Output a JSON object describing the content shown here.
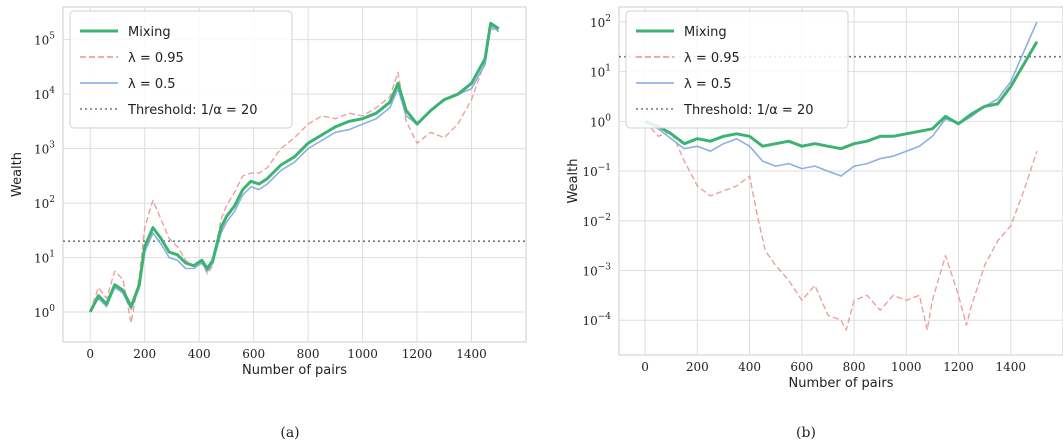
{
  "figure": {
    "captions": [
      "(a)",
      "(b)"
    ]
  },
  "chart_data": [
    {
      "type": "line",
      "caption": "(a)",
      "xlabel": "Number of pairs",
      "ylabel": "Wealth",
      "xlim": [
        -100,
        1600
      ],
      "ylim_log10": [
        -0.55,
        5.6
      ],
      "yscale": "log",
      "xticks": [
        0,
        200,
        400,
        600,
        800,
        1000,
        1200,
        1400
      ],
      "yticks_log10": [
        0,
        1,
        2,
        3,
        4,
        5
      ],
      "grid": true,
      "legend_position": "top-left",
      "legend": [
        "Mixing",
        "λ = 0.95",
        "λ = 0.5",
        "Threshold: 1/α = 20"
      ],
      "threshold": 20,
      "series": [
        {
          "name": "Mixing",
          "color": "#3cb371",
          "style": "solid-thick",
          "x": [
            0,
            30,
            60,
            90,
            120,
            150,
            180,
            200,
            230,
            260,
            290,
            320,
            350,
            380,
            410,
            430,
            450,
            480,
            500,
            530,
            560,
            590,
            620,
            650,
            700,
            750,
            800,
            850,
            900,
            950,
            1000,
            1050,
            1100,
            1130,
            1160,
            1200,
            1250,
            1300,
            1350,
            1400,
            1450,
            1470,
            1500
          ],
          "log10_y": [
            0,
            0.3,
            0.15,
            0.5,
            0.4,
            0.1,
            0.5,
            1.2,
            1.55,
            1.35,
            1.1,
            1.05,
            0.9,
            0.85,
            0.95,
            0.8,
            0.95,
            1.55,
            1.75,
            1.95,
            2.25,
            2.4,
            2.35,
            2.45,
            2.7,
            2.85,
            3.1,
            3.25,
            3.4,
            3.5,
            3.55,
            3.65,
            3.85,
            4.2,
            3.7,
            3.45,
            3.7,
            3.9,
            4.0,
            4.2,
            4.65,
            5.3,
            5.2
          ]
        },
        {
          "name": "λ = 0.95",
          "color": "#e8908e",
          "style": "dashed",
          "x": [
            0,
            30,
            60,
            90,
            120,
            150,
            180,
            200,
            230,
            260,
            290,
            320,
            350,
            380,
            410,
            430,
            450,
            480,
            500,
            530,
            560,
            590,
            620,
            650,
            700,
            750,
            800,
            850,
            900,
            950,
            1000,
            1050,
            1100,
            1130,
            1160,
            1200,
            1250,
            1300,
            1350,
            1400,
            1450,
            1470,
            1500
          ],
          "log10_y": [
            0,
            0.45,
            0.25,
            0.75,
            0.6,
            -0.2,
            0.65,
            1.55,
            2.05,
            1.7,
            1.35,
            1.2,
            0.95,
            0.85,
            0.9,
            0.7,
            0.85,
            1.7,
            1.95,
            2.2,
            2.5,
            2.55,
            2.55,
            2.65,
            3.0,
            3.2,
            3.45,
            3.6,
            3.55,
            3.65,
            3.6,
            3.75,
            3.95,
            4.4,
            3.5,
            3.1,
            3.3,
            3.2,
            3.45,
            3.9,
            4.6,
            5.2,
            5.15
          ]
        },
        {
          "name": "λ = 0.5",
          "color": "#7ea7e0",
          "style": "solid",
          "x": [
            0,
            30,
            60,
            90,
            120,
            150,
            180,
            200,
            230,
            260,
            290,
            320,
            350,
            380,
            410,
            430,
            450,
            480,
            500,
            530,
            560,
            590,
            620,
            650,
            700,
            750,
            800,
            850,
            900,
            950,
            1000,
            1050,
            1100,
            1130,
            1160,
            1200,
            1250,
            1300,
            1350,
            1400,
            1450,
            1470,
            1500
          ],
          "log10_y": [
            0,
            0.25,
            0.1,
            0.45,
            0.35,
            0.05,
            0.45,
            1.1,
            1.45,
            1.25,
            1.0,
            0.95,
            0.8,
            0.8,
            0.9,
            0.75,
            0.9,
            1.45,
            1.65,
            1.85,
            2.15,
            2.3,
            2.25,
            2.35,
            2.6,
            2.75,
            3.0,
            3.15,
            3.3,
            3.35,
            3.45,
            3.55,
            3.75,
            4.1,
            3.6,
            3.45,
            3.7,
            3.9,
            4.0,
            4.1,
            4.55,
            5.25,
            5.15
          ]
        }
      ]
    },
    {
      "type": "line",
      "caption": "(b)",
      "xlabel": "Number of pairs",
      "ylabel": "Wealth",
      "xlim": [
        -100,
        1600
      ],
      "ylim_log10": [
        -4.7,
        2.3
      ],
      "yscale": "log",
      "xticks": [
        0,
        200,
        400,
        600,
        800,
        1000,
        1200,
        1400
      ],
      "yticks_log10": [
        -4,
        -3,
        -2,
        -1,
        0,
        1,
        2
      ],
      "grid": true,
      "legend_position": "top-left",
      "legend": [
        "Mixing",
        "λ = 0.95",
        "λ = 0.5",
        "Threshold: 1/α = 20"
      ],
      "threshold": 20,
      "series": [
        {
          "name": "Mixing",
          "color": "#3cb371",
          "style": "solid-thick",
          "x": [
            0,
            50,
            100,
            150,
            200,
            250,
            300,
            350,
            400,
            450,
            500,
            550,
            600,
            650,
            700,
            750,
            800,
            850,
            900,
            950,
            1000,
            1050,
            1100,
            1150,
            1200,
            1250,
            1300,
            1350,
            1400,
            1450,
            1500
          ],
          "log10_y": [
            0,
            -0.1,
            -0.25,
            -0.45,
            -0.35,
            -0.4,
            -0.3,
            -0.25,
            -0.3,
            -0.5,
            -0.45,
            -0.4,
            -0.5,
            -0.45,
            -0.5,
            -0.55,
            -0.45,
            -0.4,
            -0.3,
            -0.3,
            -0.25,
            -0.2,
            -0.15,
            0.1,
            -0.05,
            0.15,
            0.3,
            0.35,
            0.7,
            1.15,
            1.6
          ]
        },
        {
          "name": "λ = 0.95",
          "color": "#e8908e",
          "style": "dashed",
          "x": [
            0,
            50,
            100,
            150,
            200,
            250,
            300,
            350,
            400,
            430,
            460,
            500,
            550,
            600,
            650,
            700,
            750,
            770,
            800,
            850,
            900,
            950,
            1000,
            1050,
            1080,
            1100,
            1150,
            1200,
            1230,
            1250,
            1300,
            1350,
            1400,
            1450,
            1500
          ],
          "log10_y": [
            0,
            -0.3,
            -0.2,
            -0.8,
            -1.3,
            -1.5,
            -1.4,
            -1.3,
            -1.1,
            -1.9,
            -2.6,
            -2.9,
            -3.2,
            -3.6,
            -3.3,
            -3.9,
            -4.0,
            -4.2,
            -3.6,
            -3.5,
            -3.8,
            -3.5,
            -3.6,
            -3.5,
            -4.2,
            -3.6,
            -2.7,
            -3.5,
            -4.1,
            -3.7,
            -2.9,
            -2.4,
            -2.1,
            -1.4,
            -0.6
          ]
        },
        {
          "name": "λ = 0.5",
          "color": "#7ea7e0",
          "style": "solid",
          "x": [
            0,
            50,
            100,
            150,
            200,
            250,
            300,
            350,
            400,
            450,
            500,
            550,
            600,
            650,
            700,
            750,
            800,
            850,
            900,
            950,
            1000,
            1050,
            1100,
            1150,
            1200,
            1250,
            1300,
            1350,
            1400,
            1450,
            1500
          ],
          "log10_y": [
            0,
            -0.15,
            -0.35,
            -0.55,
            -0.5,
            -0.6,
            -0.45,
            -0.35,
            -0.5,
            -0.8,
            -0.9,
            -0.85,
            -0.95,
            -0.9,
            -1.0,
            -1.1,
            -0.9,
            -0.85,
            -0.75,
            -0.7,
            -0.6,
            -0.5,
            -0.3,
            0.05,
            -0.05,
            0.1,
            0.3,
            0.45,
            0.8,
            1.4,
            2.0
          ]
        }
      ]
    }
  ]
}
